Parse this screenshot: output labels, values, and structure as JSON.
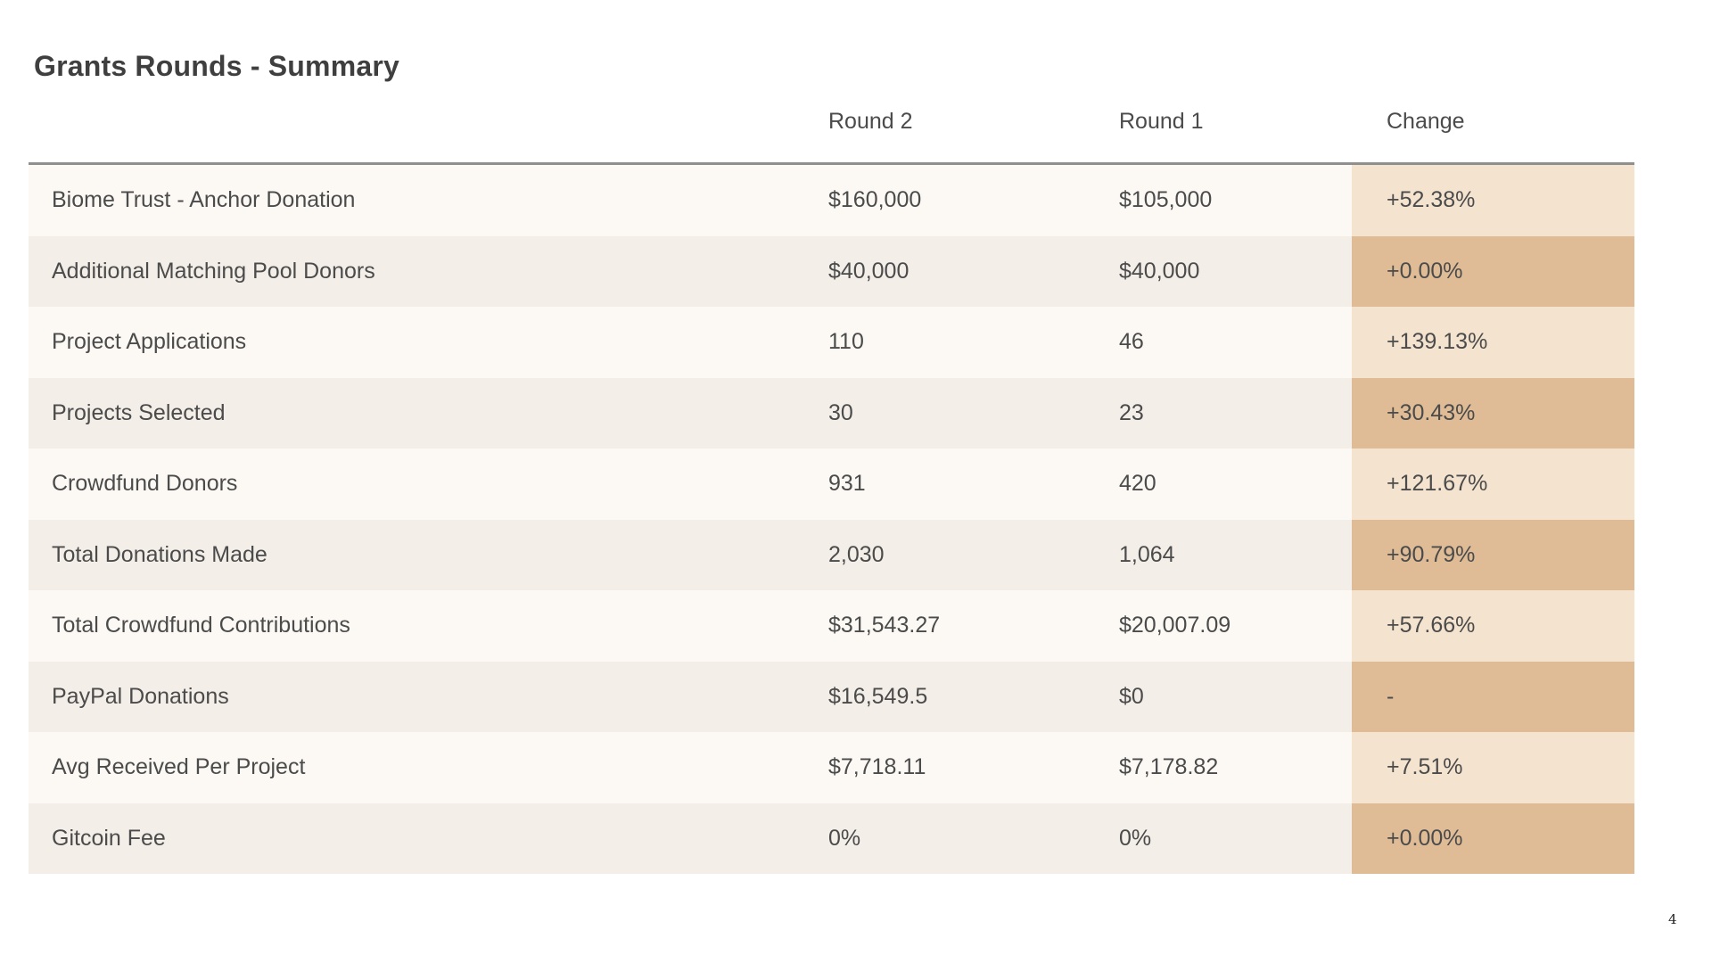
{
  "slide": {
    "title": "Grants Rounds - Summary",
    "page_number": "4"
  },
  "table": {
    "columns": [
      "Round 2",
      "Round 1",
      "Change"
    ],
    "rows": [
      {
        "metric": "Biome Trust - Anchor Donation",
        "round_2": "$160,000",
        "round_1": "$105,000",
        "change": "+52.38%"
      },
      {
        "metric": "Additional Matching Pool Donors",
        "round_2": "$40,000",
        "round_1": "$40,000",
        "change": "+0.00%"
      },
      {
        "metric": "Project Applications",
        "round_2": "110",
        "round_1": "46",
        "change": "+139.13%"
      },
      {
        "metric": "Projects Selected",
        "round_2": "30",
        "round_1": "23",
        "change": "+30.43%"
      },
      {
        "metric": "Crowdfund Donors",
        "round_2": "931",
        "round_1": "420",
        "change": "+121.67%"
      },
      {
        "metric": "Total Donations Made",
        "round_2": "2,030",
        "round_1": "1,064",
        "change": "+90.79%"
      },
      {
        "metric": "Total Crowdfund Contributions",
        "round_2": "$31,543.27",
        "round_1": "$20,007.09",
        "change": "+57.66%"
      },
      {
        "metric": "PayPal Donations",
        "round_2": "$16,549.5",
        "round_1": "$0",
        "change": "-"
      },
      {
        "metric": "Avg Received Per Project",
        "round_2": "$7,718.11",
        "round_1": "$7,178.82",
        "change": "+7.51%"
      },
      {
        "metric": "Gitcoin Fee",
        "round_2": "0%",
        "round_1": "0%",
        "change": "+0.00%"
      }
    ]
  },
  "colors": {
    "row_light": "#FCF9F4",
    "row_dark": "#F3EEE8",
    "change_light": "#F4E3CE",
    "change_dark": "#DFBC96",
    "divider": "#8F8F8F",
    "text": "#4B4B4B",
    "title_text": "#3F3F3F"
  }
}
